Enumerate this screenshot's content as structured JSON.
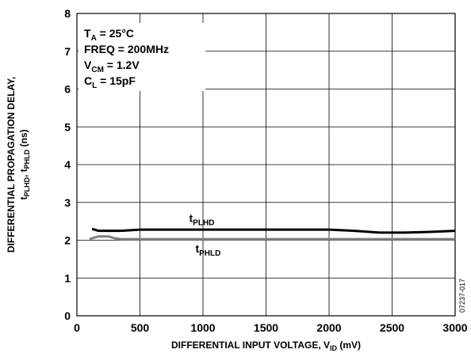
{
  "chart_data": {
    "type": "line",
    "x_label": "DIFFERENTIAL INPUT VOLTAGE, V_ID (mV)",
    "y_label_line1": "DIFFERENTIAL PROPAGATION DELAY,",
    "y_label_line2": "t_PLHD, t_PHLD (ns)",
    "xlim": [
      0,
      3000
    ],
    "ylim": [
      0,
      8
    ],
    "x_ticks": [
      0,
      500,
      1000,
      1500,
      2000,
      2500,
      3000
    ],
    "y_ticks": [
      0,
      1,
      2,
      3,
      4,
      5,
      6,
      7,
      8
    ],
    "grid": true,
    "conditions": [
      {
        "main": "T",
        "sub": "A",
        "rest": " = 25°C"
      },
      {
        "main": "FREQ = 200MHz",
        "sub": "",
        "rest": ""
      },
      {
        "main": "V",
        "sub": "CM",
        "rest": " = 1.2V"
      },
      {
        "main": "C",
        "sub": "L",
        "rest": " = 15pF"
      }
    ],
    "series": [
      {
        "name": "t_PLHD",
        "label_main": "t",
        "label_sub": "PLHD",
        "color": "#000000",
        "x": [
          120,
          170,
          250,
          350,
          500,
          1000,
          1500,
          2000,
          2200,
          2400,
          2600,
          2800,
          3000
        ],
        "y": [
          2.3,
          2.25,
          2.25,
          2.25,
          2.28,
          2.28,
          2.28,
          2.28,
          2.25,
          2.2,
          2.2,
          2.22,
          2.25
        ]
      },
      {
        "name": "t_PHLD",
        "label_main": "t",
        "label_sub": "PHLD",
        "color": "#808080",
        "x": [
          100,
          170,
          250,
          300,
          350,
          500,
          1000,
          1500,
          2000,
          2500,
          3000
        ],
        "y": [
          2.03,
          2.1,
          2.1,
          2.05,
          2.03,
          2.03,
          2.03,
          2.03,
          2.03,
          2.03,
          2.03
        ]
      }
    ],
    "figure_id": "07237-017"
  }
}
